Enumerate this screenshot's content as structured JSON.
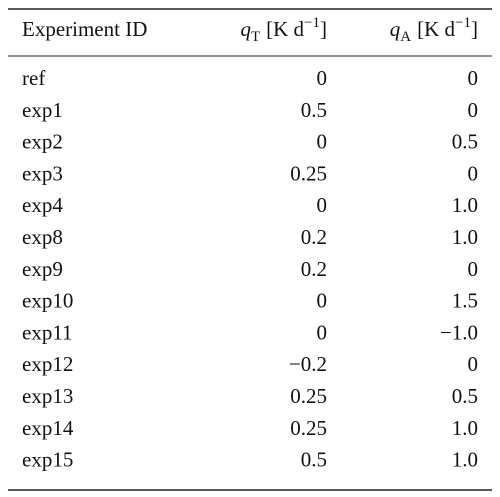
{
  "table": {
    "header": [
      [
        "Experiment ID"
      ],
      [
        "q",
        "T",
        "[K d",
        "−1",
        "]"
      ],
      [
        "q",
        "A",
        "[K d",
        "−1",
        "]"
      ]
    ],
    "rows": [
      [
        "ref",
        "0",
        "0"
      ],
      [
        "exp1",
        "0.5",
        "0"
      ],
      [
        "exp2",
        "0",
        "0.5"
      ],
      [
        "exp3",
        "0.25",
        "0"
      ],
      [
        "exp4",
        "0",
        "1.0"
      ],
      [
        "exp8",
        "0.2",
        "1.0"
      ],
      [
        "exp9",
        "0.2",
        "0"
      ],
      [
        "exp10",
        "0",
        "1.5"
      ],
      [
        "exp11",
        "0",
        "−1.0"
      ],
      [
        "exp12",
        "−0.2",
        "0"
      ],
      [
        "exp13",
        "0.25",
        "0.5"
      ],
      [
        "exp14",
        "0.25",
        "1.0"
      ],
      [
        "exp15",
        "0.5",
        "1.0"
      ]
    ]
  }
}
